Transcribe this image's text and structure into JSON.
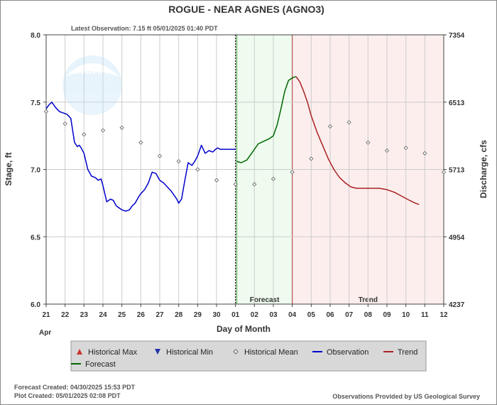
{
  "title": "ROGUE - NEAR AGNES  (AGNO3)",
  "latest_observation": "Latest Observation: 7.15 ft 05/01/2025 01:40 PDT",
  "footer": {
    "forecast_created": "Forecast Created: 04/30/2025 15:53 PDT",
    "plot_created": "Plot Created: 05/01/2025 02:08 PDT",
    "credit": "Observations Provided by US Geological Survey"
  },
  "legend": {
    "items": [
      {
        "label": "Historical Max",
        "icon": "red-triangle-up",
        "color": "#cc3333"
      },
      {
        "label": "Historical Min",
        "icon": "blue-triangle-down",
        "color": "#2233aa"
      },
      {
        "label": "Historical Mean",
        "icon": "gray-diamond",
        "color": "#666666"
      },
      {
        "label": "Observation",
        "icon": "blue-line",
        "color": "#0000cc"
      },
      {
        "label": "Trend",
        "icon": "red-line",
        "color": "#aa2222"
      },
      {
        "label": "Forecast",
        "icon": "green-line",
        "color": "#006600"
      }
    ]
  },
  "colors": {
    "observation": "#0000cc",
    "forecast": "#006600",
    "trend": "#aa2222",
    "mean": "#777777",
    "forecast_region": "#eefbee",
    "trend_region": "#fdeeee",
    "grid": "#cccccc"
  },
  "chart_data": {
    "type": "line",
    "xlabel": "Day of Month",
    "x_month_label": "Apr",
    "ylabel": "Stage, ft",
    "y2label": "Discharge, cfs",
    "ylim": [
      6.0,
      8.0
    ],
    "yticks": [
      "6.0",
      "6.5",
      "7.0",
      "7.5",
      "8.0"
    ],
    "y2ticks": [
      {
        "stage": 6.0,
        "label": "4237"
      },
      {
        "stage": 6.5,
        "label": "4954"
      },
      {
        "stage": 7.0,
        "label": "5713"
      },
      {
        "stage": 7.5,
        "label": "6513"
      },
      {
        "stage": 8.0,
        "label": "7354"
      }
    ],
    "xlim": [
      0,
      21
    ],
    "xticks": [
      "21",
      "22",
      "23",
      "24",
      "25",
      "26",
      "27",
      "28",
      "29",
      "30",
      "01",
      "02",
      "03",
      "04",
      "05",
      "06",
      "07",
      "08",
      "09",
      "10",
      "11",
      "12"
    ],
    "regions": [
      {
        "label": "Forecast",
        "start": 10.07,
        "end": 13.0
      },
      {
        "label": "Trend",
        "start": 13.0,
        "end": 21.0
      }
    ],
    "now_marker": 10.0,
    "grid": true,
    "legend_position": "bottom",
    "series": [
      {
        "name": "Observation",
        "x": [
          0.0,
          0.15,
          0.3,
          0.5,
          0.7,
          0.9,
          1.1,
          1.3,
          1.5,
          1.65,
          1.75,
          1.85,
          2.0,
          2.2,
          2.4,
          2.6,
          2.75,
          2.9,
          3.0,
          3.2,
          3.4,
          3.55,
          3.7,
          3.8,
          3.9,
          4.0,
          4.2,
          4.4,
          4.55,
          4.7,
          4.9,
          5.0,
          5.2,
          5.4,
          5.6,
          5.8,
          6.0,
          6.2,
          6.4,
          6.6,
          6.8,
          6.9,
          7.0,
          7.15,
          7.3,
          7.5,
          7.7,
          7.85,
          8.0,
          8.2,
          8.4,
          8.6,
          8.8,
          8.95,
          9.05,
          9.2,
          9.35,
          9.5,
          9.65,
          9.8,
          9.9,
          10.0
        ],
        "values": [
          7.45,
          7.48,
          7.5,
          7.46,
          7.43,
          7.42,
          7.41,
          7.38,
          7.2,
          7.17,
          7.18,
          7.16,
          7.12,
          7.0,
          6.95,
          6.94,
          6.92,
          6.93,
          6.88,
          6.76,
          6.78,
          6.77,
          6.73,
          6.72,
          6.71,
          6.7,
          6.69,
          6.7,
          6.73,
          6.75,
          6.8,
          6.82,
          6.85,
          6.9,
          6.98,
          6.97,
          6.92,
          6.9,
          6.87,
          6.84,
          6.8,
          6.78,
          6.75,
          6.78,
          6.9,
          7.05,
          7.03,
          7.06,
          7.1,
          7.18,
          7.12,
          7.14,
          7.13,
          7.15,
          7.16,
          7.15,
          7.15,
          7.15,
          7.15,
          7.15,
          7.15,
          7.15
        ]
      },
      {
        "name": "Forecast",
        "x": [
          10.07,
          10.3,
          10.6,
          10.9,
          11.2,
          11.5,
          11.8,
          12.0,
          12.2,
          12.4,
          12.6,
          12.8,
          13.0,
          13.2
        ],
        "values": [
          7.06,
          7.05,
          7.07,
          7.13,
          7.19,
          7.21,
          7.23,
          7.25,
          7.33,
          7.45,
          7.58,
          7.66,
          7.68,
          7.69
        ]
      },
      {
        "name": "Trend",
        "x": [
          13.2,
          13.4,
          13.6,
          13.8,
          14.0,
          14.3,
          14.6,
          14.9,
          15.2,
          15.5,
          15.8,
          16.1,
          16.4,
          16.7,
          17.0,
          17.3,
          17.6,
          18.0,
          18.4,
          18.8,
          19.2,
          19.5,
          19.7
        ],
        "values": [
          7.69,
          7.65,
          7.58,
          7.5,
          7.4,
          7.28,
          7.18,
          7.08,
          7.0,
          6.94,
          6.9,
          6.87,
          6.86,
          6.86,
          6.86,
          6.86,
          6.86,
          6.85,
          6.83,
          6.8,
          6.77,
          6.75,
          6.74
        ]
      },
      {
        "name": "Historical Mean",
        "x": [
          0.0,
          1.0,
          2.0,
          3.0,
          4.0,
          5.0,
          6.0,
          7.0,
          8.0,
          9.0,
          10.0,
          11.0,
          12.0,
          13.0,
          14.0,
          15.0,
          16.0,
          17.0,
          18.0,
          19.0,
          20.0,
          21.0
        ],
        "values": [
          7.43,
          7.34,
          7.26,
          7.29,
          7.31,
          7.2,
          7.1,
          7.06,
          7.0,
          6.92,
          6.89,
          6.89,
          6.93,
          6.98,
          7.08,
          7.32,
          7.35,
          7.2,
          7.14,
          7.16,
          7.12,
          6.98
        ]
      }
    ]
  }
}
